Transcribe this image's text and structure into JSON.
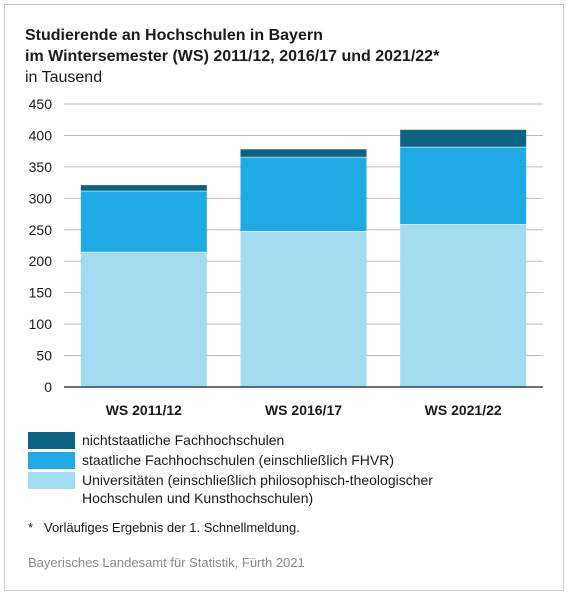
{
  "title_lines": [
    "Studierende an Hochschulen in Bayern",
    "im Wintersemester (WS) 2011/12, 2016/17 und 2021/22*"
  ],
  "subtitle": "in Tausend",
  "legend": [
    {
      "label_lines": [
        "nichtstaatliche Fachhochschulen"
      ],
      "color": "#0e6282"
    },
    {
      "label_lines": [
        "staatliche Fachhochschulen (einschließlich FHVR)"
      ],
      "color": "#1faae3"
    },
    {
      "label_lines": [
        "Universitäten (einschließlich philosophisch-theologischer",
        "Hochschulen und Kunsthochschulen)"
      ],
      "color": "#a3dbf1"
    }
  ],
  "footnote": {
    "marker": "*",
    "text": "Vorläufiges Ergebnis der 1. Schnellmeldung."
  },
  "source": "Bayerisches Landesamt für Statistik, Fürth 2021",
  "chart_data": {
    "type": "bar",
    "stacked": true,
    "categories": [
      "WS 2011/12",
      "WS 2016/17",
      "WS 2021/22"
    ],
    "series": [
      {
        "name": "Universitäten (einschließlich philosophisch-theologischer Hochschulen und Kunsthochschulen)",
        "values": [
          215,
          248,
          259
        ],
        "color": "#a3dbf1"
      },
      {
        "name": "staatliche Fachhochschulen (einschließlich FHVR)",
        "values": [
          97,
          118,
          123
        ],
        "color": "#1faae3"
      },
      {
        "name": "nichtstaatliche Fachhochschulen",
        "values": [
          9,
          12,
          27
        ],
        "color": "#0e6282"
      }
    ],
    "ylim": [
      0,
      450
    ],
    "yticks": [
      0,
      50,
      100,
      150,
      200,
      250,
      300,
      350,
      400,
      450
    ],
    "grid": true,
    "legend_position": "bottom"
  }
}
